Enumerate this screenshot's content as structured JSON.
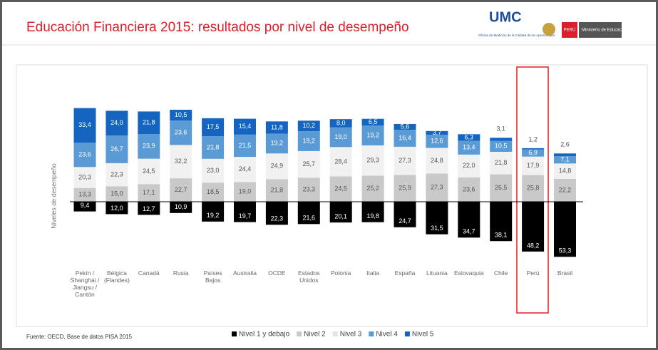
{
  "header": {
    "title": "Educación Financiera 2015: resultados por nivel de desempeño",
    "logo_text": "UMC",
    "logo_subtitle": "Oficina de Medición de la Calidad de los Aprendizajes",
    "country": "PERÚ",
    "ministry": "Ministerio de Educación"
  },
  "chart_data": {
    "type": "bar",
    "ylabel": "Niveles de desempeño",
    "categories": [
      "Pekín / Shanghái / Jiangsu / Cantón",
      "Bélgica (Flandes)",
      "Canadá",
      "Rusia",
      "Países Bajos",
      "Australia",
      "OCDE",
      "Estados Unidos",
      "Polonia",
      "Italia",
      "España",
      "Lituania",
      "Eslovaquia",
      "Chile",
      "Perú",
      "Brasil"
    ],
    "series": [
      {
        "name": "Nivel 1 y debajo",
        "color": "#000000",
        "values": [
          9.4,
          12.0,
          12.7,
          10.9,
          19.2,
          19.7,
          22.3,
          21.6,
          20.1,
          19.8,
          24.7,
          31.5,
          34.7,
          38.1,
          48.2,
          53.3
        ],
        "value_labels": [
          "9,4",
          "12,0",
          "12,7",
          "10,9",
          "19,2",
          "19,7",
          "22,3",
          "21,6",
          "20,1",
          "19,8",
          "24,7",
          "31,5",
          "34,7",
          "38,1",
          "48,2",
          "53,3"
        ]
      },
      {
        "name": "Nivel 2",
        "color": "#c9c9c9",
        "values": [
          13.3,
          15.0,
          17.1,
          22.7,
          18.5,
          19.0,
          21.8,
          23.3,
          24.5,
          25.2,
          25.9,
          27.3,
          23.6,
          26.5,
          25.8,
          22.2
        ],
        "value_labels": [
          "13,3",
          "15,0",
          "17,1",
          "22,7",
          "18,5",
          "19,0",
          "21,8",
          "23,3",
          "24,5",
          "25,2",
          "25,9",
          "27,3",
          "23,6",
          "26,5",
          "25,8",
          "22,2"
        ]
      },
      {
        "name": "Nivel 3",
        "color": "#f1f1f1",
        "values": [
          20.3,
          22.3,
          24.5,
          32.2,
          23.0,
          24.4,
          24.9,
          25.7,
          28.4,
          29.3,
          27.3,
          24.8,
          22.0,
          21.8,
          17.9,
          14.8
        ],
        "value_labels": [
          "20,3",
          "22,3",
          "24,5",
          "32,2",
          "23,0",
          "24,4",
          "24,9",
          "25,7",
          "28,4",
          "29,3",
          "27,3",
          "24,8",
          "22,0",
          "21,8",
          "17,9",
          "14,8"
        ]
      },
      {
        "name": "Nivel 4",
        "color": "#5b9bd5",
        "values": [
          23.6,
          26.7,
          23.9,
          23.6,
          21.8,
          21.5,
          19.2,
          19.2,
          19.0,
          19.2,
          16.4,
          12.6,
          13.4,
          10.5,
          6.9,
          7.1
        ],
        "value_labels": [
          "23,6",
          "26,7",
          "23,9",
          "23,6",
          "21,8",
          "21,5",
          "19,2",
          "19,2",
          "19,0",
          "19,2",
          "16,4",
          "12,6",
          "13,4",
          "10,5",
          "6,9",
          "7,1"
        ]
      },
      {
        "name": "Nivel 5",
        "color": "#1565c0",
        "values": [
          33.4,
          24.0,
          21.8,
          10.5,
          17.5,
          15.4,
          11.8,
          10.2,
          8.0,
          6.5,
          5.6,
          3.7,
          6.3,
          3.1,
          1.2,
          2.6
        ],
        "value_labels": [
          "33,4",
          "24,0",
          "21,8",
          "10,5",
          "17,5",
          "15,4",
          "11,8",
          "10,2",
          "8,0",
          "6,5",
          "5,6",
          "3,7",
          "6,3",
          "3,1",
          "1,2",
          "2,6"
        ]
      }
    ]
  },
  "source": "Fuente: OECD, Base de datos PISA 2015"
}
